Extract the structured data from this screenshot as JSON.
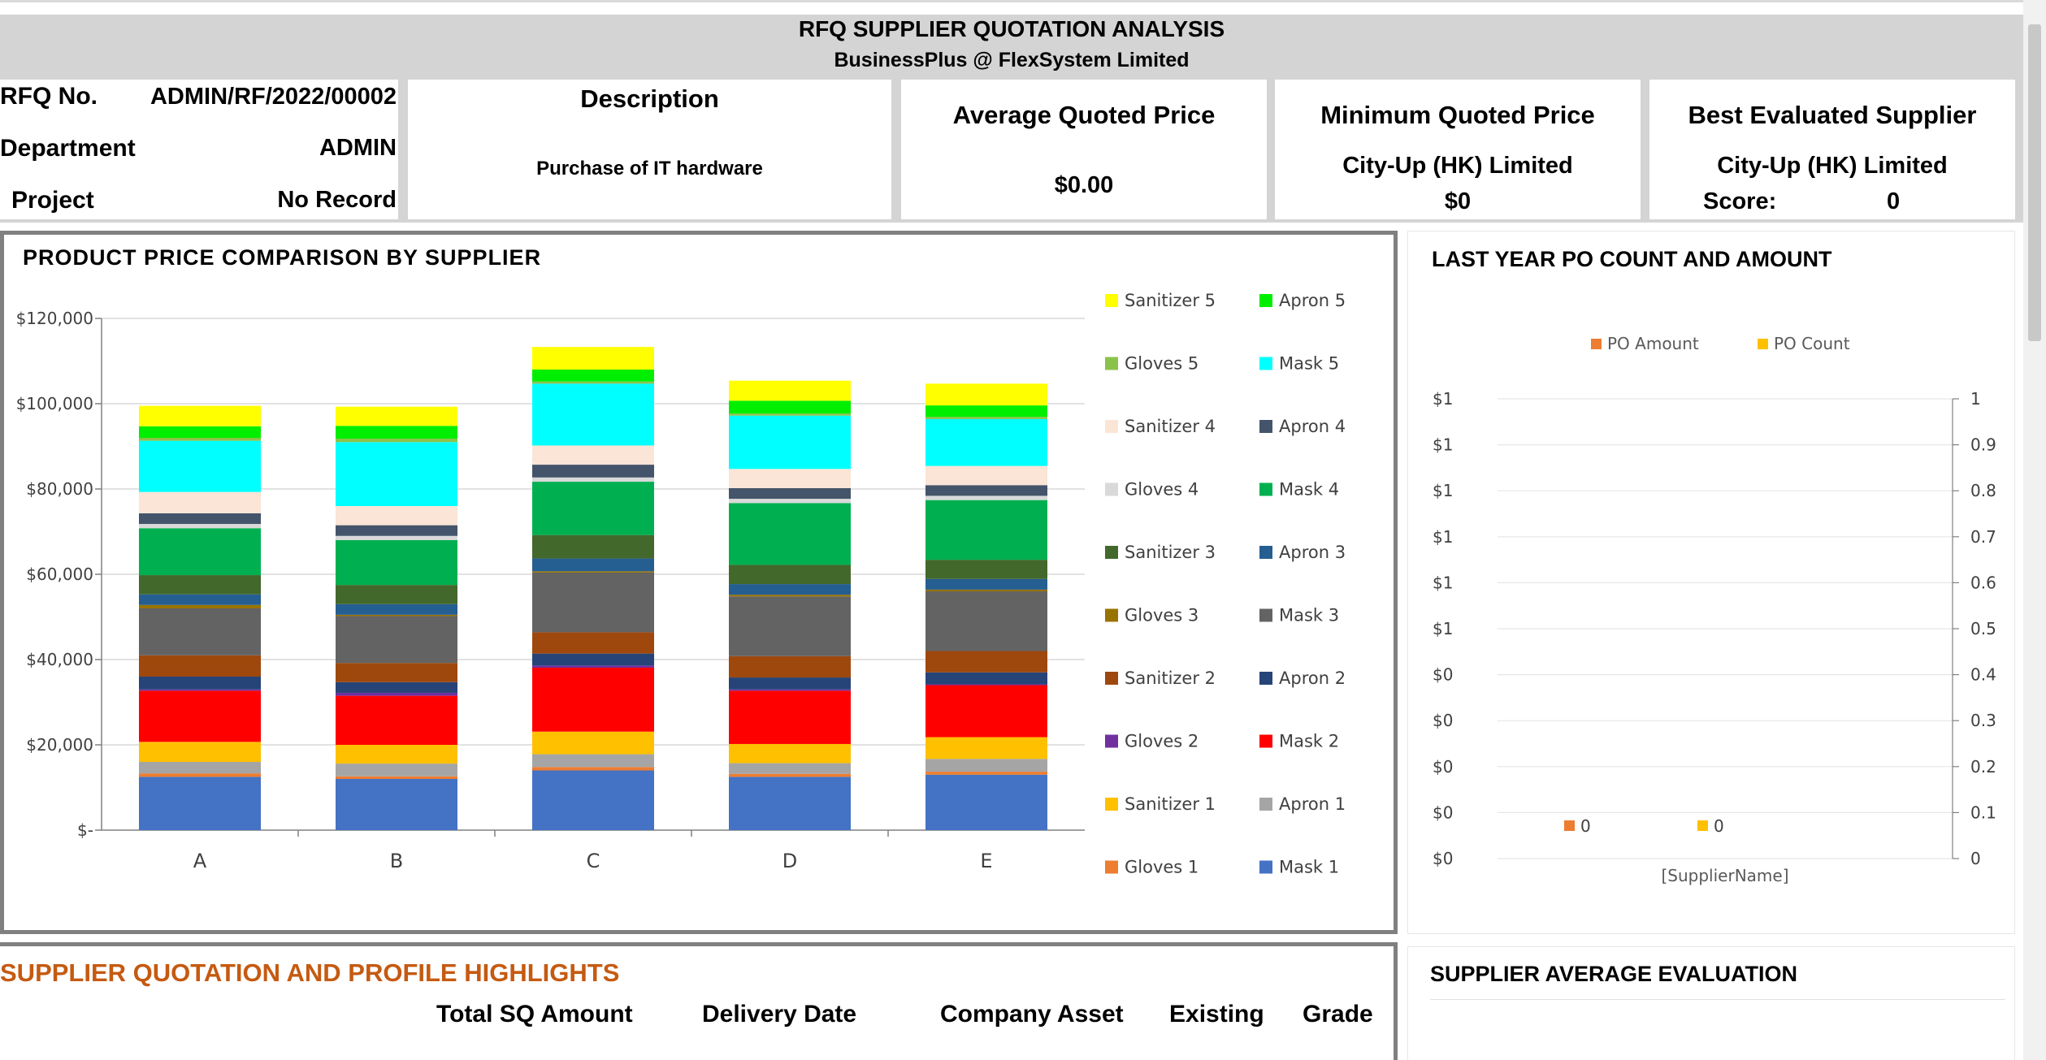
{
  "header": {
    "title": "RFQ SUPPLIER QUOTATION ANALYSIS",
    "subtitle": "BusinessPlus @ FlexSystem Limited"
  },
  "info": {
    "rfq_label": "RFQ No.",
    "rfq_value": "ADMIN/RF/2022/00002",
    "dept_label": "Department",
    "dept_value": "ADMIN",
    "project_label": "Project",
    "project_value": "No Record"
  },
  "description": {
    "title": "Description",
    "value": "Purchase of IT hardware"
  },
  "avg_price": {
    "title": "Average Quoted Price",
    "value": "$0.00"
  },
  "min_price": {
    "title": "Minimum Quoted Price",
    "supplier": "City-Up (HK) Limited",
    "value": "$0"
  },
  "best_supplier": {
    "title": "Best Evaluated Supplier",
    "supplier": "City-Up (HK) Limited",
    "score_label": "Score:",
    "score_value": "0"
  },
  "product_chart_title": "PRODUCT  PRICE  COMPARISON  BY  SUPPLIER",
  "po_chart_title": "LAST YEAR PO COUNT AND AMOUNT",
  "highlights": {
    "title": "SUPPLIER QUOTATION AND PROFILE HIGHLIGHTS",
    "columns": [
      "Total SQ Amount",
      "Delivery Date",
      "Company Asset",
      "Existing",
      "Grade"
    ]
  },
  "evaluation": {
    "title": "SUPPLIER AVERAGE EVALUATION"
  },
  "colors": {
    "header_band": "#d4d4d4",
    "highlight_title": "#c55a11"
  },
  "chart_data": [
    {
      "type": "bar",
      "stacked": true,
      "title": "",
      "categories": [
        "A",
        "B",
        "C",
        "D",
        "E"
      ],
      "y_tick_labels": [
        "$120,000",
        "$100,000",
        "$80,000",
        "$60,000",
        "$40,000",
        "$20,000",
        "$-"
      ],
      "ylim": [
        0,
        120000
      ],
      "grid": true,
      "legend_position": "right",
      "series": [
        {
          "name": "Mask 1",
          "color": "#4472c4",
          "values": [
            12500,
            12000,
            14000,
            12500,
            13000
          ]
        },
        {
          "name": "Gloves 1",
          "color": "#ed7d31",
          "values": [
            800,
            600,
            800,
            700,
            700
          ]
        },
        {
          "name": "Apron 1",
          "color": "#a5a5a5",
          "values": [
            2700,
            3000,
            3000,
            2500,
            3000
          ]
        },
        {
          "name": "Sanitizer 1",
          "color": "#ffc000",
          "values": [
            4700,
            4400,
            5300,
            4500,
            5100
          ]
        },
        {
          "name": "Mask 2",
          "color": "#ff0000",
          "values": [
            12000,
            11500,
            15000,
            12500,
            12200
          ]
        },
        {
          "name": "Gloves 2",
          "color": "#7030a0",
          "values": [
            300,
            700,
            500,
            300,
            200
          ]
        },
        {
          "name": "Apron 2",
          "color": "#264478",
          "values": [
            3000,
            2500,
            2800,
            2800,
            2800
          ]
        },
        {
          "name": "Sanitizer 2",
          "color": "#9e480e",
          "values": [
            5000,
            4500,
            5000,
            5000,
            5000
          ]
        },
        {
          "name": "Mask 3",
          "color": "#636363",
          "values": [
            11000,
            11000,
            14000,
            14000,
            14000
          ]
        },
        {
          "name": "Gloves 3",
          "color": "#997300",
          "values": [
            800,
            300,
            300,
            400,
            400
          ]
        },
        {
          "name": "Apron 3",
          "color": "#255e91",
          "values": [
            2500,
            2500,
            3000,
            2500,
            2500
          ]
        },
        {
          "name": "Sanitizer 3",
          "color": "#43682b",
          "values": [
            4500,
            4500,
            5500,
            4500,
            4500
          ]
        },
        {
          "name": "Mask 4",
          "color": "#00b050",
          "values": [
            11000,
            10500,
            12500,
            14500,
            14000
          ]
        },
        {
          "name": "Gloves 4",
          "color": "#d9d9d9",
          "values": [
            1000,
            1000,
            1000,
            1000,
            1000
          ]
        },
        {
          "name": "Apron 4",
          "color": "#44546a",
          "values": [
            2500,
            2500,
            3000,
            2500,
            2500
          ]
        },
        {
          "name": "Sanitizer 4",
          "color": "#fbe5d6",
          "values": [
            5000,
            4500,
            4500,
            4500,
            4500
          ]
        },
        {
          "name": "Mask 5",
          "color": "#00ffff",
          "values": [
            12000,
            15000,
            14500,
            12500,
            11000
          ]
        },
        {
          "name": "Gloves 5",
          "color": "#8bc34a",
          "values": [
            700,
            800,
            500,
            500,
            500
          ]
        },
        {
          "name": "Apron 5",
          "color": "#00ee00",
          "values": [
            2700,
            3000,
            2800,
            3000,
            2700
          ]
        },
        {
          "name": "Sanitizer 5",
          "color": "#ffff00",
          "values": [
            4800,
            4500,
            5300,
            4700,
            5100
          ]
        }
      ]
    },
    {
      "type": "bar",
      "title": "",
      "categories": [
        "[SupplierName]"
      ],
      "xlabel": "",
      "y_left_tick_labels": [
        "$1",
        "$1",
        "$1",
        "$1",
        "$1",
        "$1",
        "$0",
        "$0",
        "$0",
        "$0",
        "$0"
      ],
      "y_right_tick_labels": [
        "1",
        "0.9",
        "0.8",
        "0.7",
        "0.6",
        "0.5",
        "0.4",
        "0.3",
        "0.2",
        "0.1",
        "0"
      ],
      "y_right_lim": [
        0,
        1
      ],
      "legend_position": "top",
      "series": [
        {
          "name": "PO Amount",
          "color": "#ed7d31",
          "values": [
            0
          ],
          "data_label": "0"
        },
        {
          "name": "PO Count",
          "color": "#ffc000",
          "values": [
            0
          ],
          "data_label": "0"
        }
      ]
    }
  ]
}
